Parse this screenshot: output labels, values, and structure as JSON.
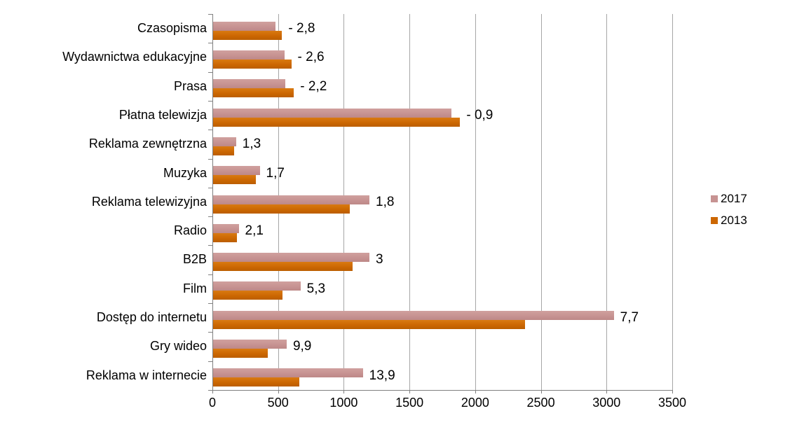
{
  "chart_data": {
    "type": "bar",
    "orientation": "horizontal",
    "title": "",
    "xlabel": "",
    "ylabel": "",
    "xlim": [
      0,
      3500
    ],
    "xticks": [
      0,
      500,
      1000,
      1500,
      2000,
      2500,
      3000,
      3500
    ],
    "grid": "vertical-gridlines-on",
    "legend_position": "right",
    "categories": [
      "Czasopisma",
      "Wydawnictwa edukacyjne",
      "Prasa",
      "Płatna telewizja",
      "Reklama zewnętrzna",
      "Muzyka",
      "Reklama telewizyjna",
      "Radio",
      "B2B",
      "Film",
      "Dostęp do internetu",
      "Gry wideo",
      "Reklama w internecie"
    ],
    "series": [
      {
        "name": "2017",
        "color": "#C79392",
        "values": [
          475,
          545,
          550,
          1815,
          175,
          355,
          1190,
          195,
          1190,
          665,
          3050,
          560,
          1140
        ]
      },
      {
        "name": "2013",
        "color": "#CC6702",
        "values": [
          525,
          595,
          615,
          1880,
          160,
          325,
          1040,
          180,
          1060,
          530,
          2375,
          415,
          655
        ]
      }
    ],
    "bar_labels": [
      "- 2,8",
      "- 2,6",
      "- 2,2",
      "- 0,9",
      "1,3",
      "1,7",
      "1,8",
      "2,1",
      "3",
      "5,3",
      "7,7",
      "9,9",
      "13,9"
    ]
  },
  "colors": {
    "series_2017": "#C79392",
    "series_2013": "#CC6702",
    "gridline": "#A6A6A6",
    "axis": "#808080",
    "text": "#000000",
    "background": "#FFFFFF"
  }
}
